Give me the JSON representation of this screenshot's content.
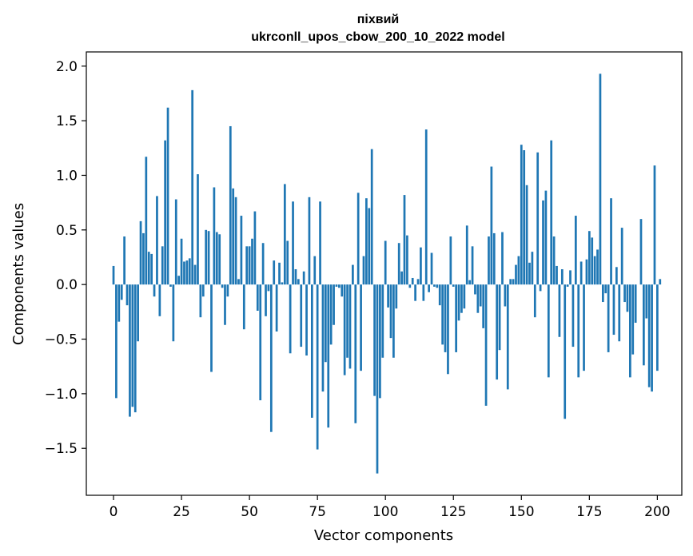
{
  "chart_data": {
    "type": "bar",
    "title_line1": "піхвий",
    "title_line2": "ukrconll_upos_cbow_200_10_2022 model",
    "xlabel": "Vector components",
    "ylabel": "Components values",
    "xlim": [
      -10,
      209
    ],
    "ylim": [
      -1.93,
      2.13
    ],
    "xticks": [
      0,
      25,
      50,
      75,
      100,
      125,
      150,
      175,
      200
    ],
    "yticks": [
      -1.5,
      -1.0,
      -0.5,
      0.0,
      0.5,
      1.0,
      1.5,
      2.0
    ],
    "ytick_labels": [
      "−1.5",
      "−1.0",
      "−0.5",
      "0.0",
      "0.5",
      "1.0",
      "1.5",
      "2.0"
    ],
    "bar_color": "#1f77b4",
    "grid": false,
    "values": [
      0.17,
      -1.04,
      -0.34,
      -0.14,
      0.44,
      -0.19,
      -1.21,
      -1.12,
      -1.17,
      -0.52,
      0.58,
      0.47,
      1.17,
      0.3,
      0.28,
      -0.11,
      0.81,
      -0.29,
      0.35,
      1.32,
      1.62,
      -0.02,
      -0.52,
      0.78,
      0.08,
      0.42,
      0.21,
      0.22,
      0.24,
      1.78,
      0.18,
      1.01,
      -0.3,
      -0.11,
      0.5,
      0.49,
      -0.8,
      0.89,
      0.48,
      0.46,
      -0.03,
      -0.37,
      -0.11,
      1.45,
      0.88,
      0.8,
      0.05,
      0.63,
      -0.41,
      0.35,
      0.35,
      0.42,
      0.67,
      -0.24,
      -1.06,
      0.38,
      -0.29,
      -0.06,
      -1.35,
      0.22,
      -0.43,
      0.2,
      0.02,
      0.92,
      0.4,
      -0.63,
      0.76,
      0.14,
      0.05,
      -0.57,
      0.12,
      -0.65,
      0.8,
      -1.22,
      0.26,
      -1.51,
      0.76,
      -0.98,
      -0.71,
      -1.31,
      -0.55,
      -0.37,
      -0.02,
      -0.03,
      -0.11,
      -0.83,
      -0.67,
      -0.77,
      0.18,
      -1.27,
      0.84,
      -0.79,
      0.26,
      0.79,
      0.7,
      1.24,
      -1.02,
      -1.73,
      -1.04,
      -0.67,
      0.4,
      -0.21,
      -0.49,
      -0.67,
      -0.22,
      0.38,
      0.12,
      0.82,
      0.45,
      -0.03,
      0.06,
      -0.15,
      0.05,
      0.34,
      -0.15,
      1.42,
      -0.07,
      0.29,
      -0.02,
      -0.03,
      -0.19,
      -0.55,
      -0.62,
      -0.82,
      0.44,
      -0.02,
      -0.62,
      -0.33,
      -0.26,
      -0.22,
      0.54,
      0.04,
      0.35,
      -0.09,
      -0.26,
      -0.2,
      -0.4,
      -1.11,
      0.44,
      1.08,
      0.47,
      -0.87,
      -0.6,
      0.48,
      -0.2,
      -0.96,
      0.05,
      0.05,
      0.18,
      0.26,
      1.28,
      1.23,
      0.91,
      0.2,
      0.3,
      -0.3,
      1.21,
      -0.06,
      0.77,
      0.86,
      -0.85,
      1.32,
      0.44,
      0.17,
      -0.48,
      0.14,
      -1.23,
      -0.02,
      0.13,
      -0.57,
      0.63,
      -0.85,
      0.21,
      -0.79,
      0.23,
      0.49,
      0.43,
      0.26,
      0.32,
      1.93,
      -0.16,
      -0.08,
      -0.62,
      0.79,
      -0.46,
      0.16,
      -0.52,
      0.52,
      -0.16,
      -0.25,
      -0.85,
      -0.64,
      -0.35,
      0.0,
      0.6,
      -0.74,
      -0.31,
      -0.94,
      -0.98,
      1.09,
      -0.79,
      0.05
    ]
  }
}
